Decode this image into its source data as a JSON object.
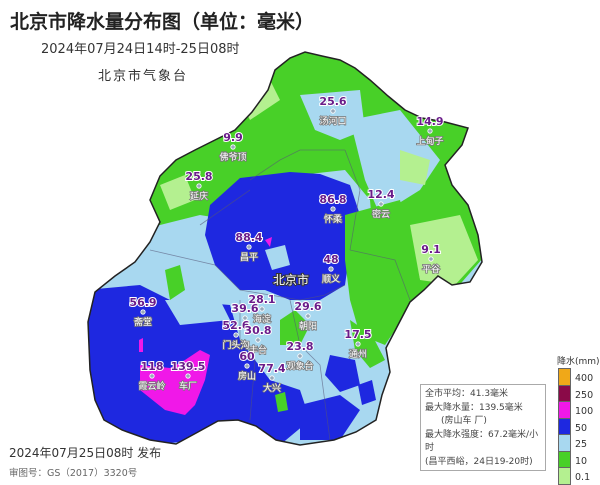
{
  "header": {
    "title": "北京市降水量分布图（单位：毫米）",
    "subtitle": "2024年07月24日14时-25日08时",
    "org": "北京市气象台"
  },
  "map": {
    "city_label": "北京市",
    "stations": [
      {
        "value": "25.6",
        "name": "汤河口"
      },
      {
        "value": "9.9",
        "name": "佛爷顶"
      },
      {
        "value": "25.8",
        "name": "延庆"
      },
      {
        "value": "14.9",
        "name": "上甸子"
      },
      {
        "value": "12.4",
        "name": "密云"
      },
      {
        "value": "86.8",
        "name": "怀柔"
      },
      {
        "value": "88.4",
        "name": "昌平"
      },
      {
        "value": "48",
        "name": "顺义"
      },
      {
        "value": "9.1",
        "name": "平谷"
      },
      {
        "value": "56.9",
        "name": "斋堂"
      },
      {
        "value": "28.1",
        "name": "海淀"
      },
      {
        "value": "39.6",
        "name": ""
      },
      {
        "value": "29.6",
        "name": "朝阳"
      },
      {
        "value": "52.6",
        "name": "门头沟"
      },
      {
        "value": "30.8",
        "name": "丰台"
      },
      {
        "value": "23.8",
        "name": "观象台"
      },
      {
        "value": "17.5",
        "name": "通州"
      },
      {
        "value": "60",
        "name": "房山"
      },
      {
        "value": "77.4",
        "name": "大兴"
      },
      {
        "value": "118",
        "name": "霞云岭"
      },
      {
        "value": "139.5",
        "name": "车厂"
      }
    ]
  },
  "info_box": {
    "avg": "全市平均：41.3毫米",
    "max": "最大降水量：139.5毫米",
    "max_loc": "(房山车 厂)",
    "intensity": "最大降水强度：67.2毫米/小时",
    "intensity_loc": "(昌平西峪，24日19-20时)"
  },
  "legend": {
    "title": "降水(mm)",
    "items": [
      {
        "label": "400",
        "color": "#f0a818"
      },
      {
        "label": "250",
        "color": "#8a0a48"
      },
      {
        "label": "100",
        "color": "#f018e8"
      },
      {
        "label": "50",
        "color": "#1e28e0"
      },
      {
        "label": "25",
        "color": "#a8d8f0"
      },
      {
        "label": "10",
        "color": "#48d028"
      },
      {
        "label": "0.1",
        "color": "#b4f090"
      }
    ]
  },
  "footer": {
    "issued": "2024年07月25日08时 发布",
    "approval": "审图号：GS（2017）3320号"
  }
}
